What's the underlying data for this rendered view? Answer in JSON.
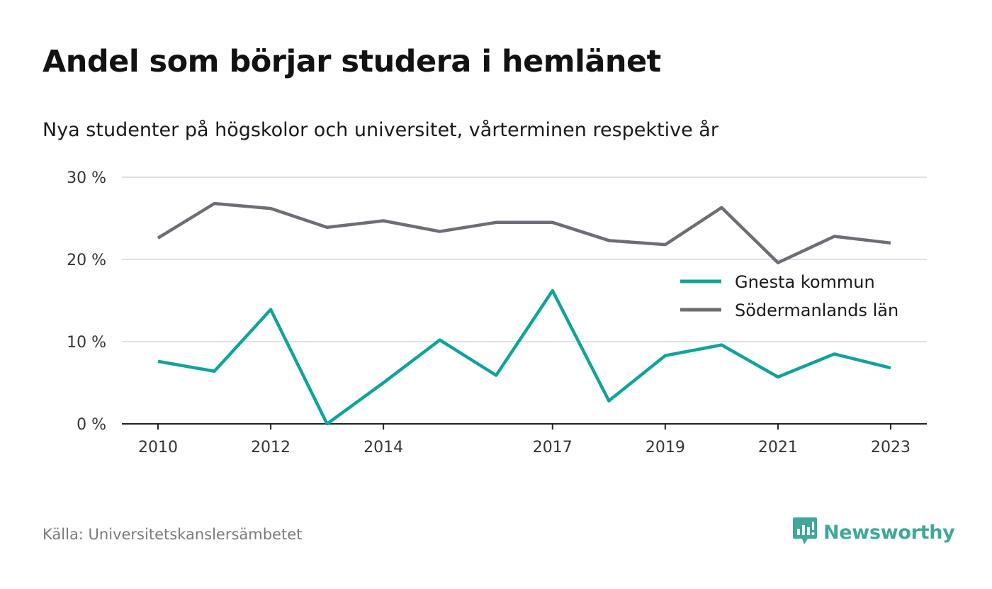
{
  "title": "Andel som börjar studera i hemlänet",
  "subtitle": "Nya studenter på högskolor och universitet, vårterminen respektive år",
  "source": "Källa: Universitetskanslersämbetet",
  "brand": {
    "name": "Newsworthy",
    "icon": "newsworthy-logo-icon",
    "color": "#3fa89a"
  },
  "chart_data": {
    "type": "line",
    "x": [
      2010,
      2011,
      2012,
      2013,
      2014,
      2015,
      2016,
      2017,
      2018,
      2019,
      2020,
      2021,
      2022,
      2023
    ],
    "x_tick_labels": [
      "2010",
      "2012",
      "2014",
      "2017",
      "2019",
      "2021",
      "2023"
    ],
    "x_tick_values": [
      2010,
      2012,
      2014,
      2017,
      2019,
      2021,
      2023
    ],
    "y_tick_values": [
      0,
      10,
      20,
      30
    ],
    "y_tick_labels": [
      "0 %",
      "10 %",
      "20 %",
      "30 %"
    ],
    "ylim": [
      0,
      30
    ],
    "grid": true,
    "legend_position": "right",
    "series": [
      {
        "name": "Gnesta kommun",
        "color": "#0fa39b",
        "values": [
          7.6,
          6.4,
          13.9,
          0.0,
          5.0,
          10.2,
          5.9,
          16.2,
          2.8,
          8.3,
          9.6,
          5.7,
          8.5,
          6.8
        ]
      },
      {
        "name": "Södermanlands län",
        "color": "#6e6d75",
        "values": [
          22.6,
          26.8,
          26.2,
          23.9,
          24.7,
          23.4,
          24.5,
          24.5,
          22.3,
          21.8,
          26.3,
          19.6,
          22.8,
          22.0
        ]
      }
    ]
  }
}
